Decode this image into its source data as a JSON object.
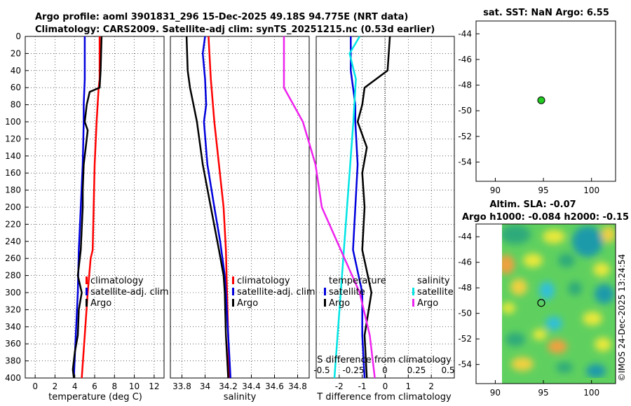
{
  "header": {
    "line1": "Argo profile: aoml 3901831_296 15-Dec-2025 49.18S 94.775E (NRT data)",
    "line2": "Climatology: CARS2009. Satellite-adj clim: synTS_20251215.nc (0.53d earlier)"
  },
  "copyright": "©IMOS 24-Dec-2025 13:24:54",
  "colors": {
    "red": "#ff0000",
    "blue": "#0000dd",
    "black": "#000000",
    "cyan": "#00e5e5",
    "magenta": "#ee22ee",
    "marker": "#22cc22"
  },
  "chart_data": [
    {
      "id": "temperature",
      "type": "line",
      "xlabel": "temperature (deg C)",
      "ylim": [
        0,
        400
      ],
      "xlim": [
        -1,
        13
      ],
      "xticks": [
        0,
        2,
        4,
        6,
        8,
        10,
        12
      ],
      "yticks": [
        0,
        20,
        40,
        60,
        80,
        100,
        120,
        140,
        160,
        180,
        200,
        220,
        240,
        260,
        280,
        300,
        320,
        340,
        360,
        380,
        400
      ],
      "legend": [
        "climatology",
        "satellite-adj. clim",
        "Argo"
      ],
      "series": [
        {
          "name": "climatology",
          "color": "red",
          "depth": [
            0,
            50,
            60,
            100,
            150,
            200,
            250,
            260,
            300,
            350,
            400
          ],
          "values": [
            6.5,
            6.5,
            6.4,
            6.2,
            6.0,
            5.9,
            5.8,
            5.6,
            5.3,
            5.0,
            4.7
          ]
        },
        {
          "name": "satellite-adj. clim",
          "color": "blue",
          "depth": [
            0,
            50,
            80,
            100,
            150,
            200,
            250,
            300,
            350,
            400
          ],
          "values": [
            5.0,
            5.0,
            4.9,
            4.9,
            4.8,
            4.6,
            4.4,
            4.3,
            4.1,
            3.9
          ]
        },
        {
          "name": "Argo",
          "color": "black",
          "depth": [
            0,
            40,
            60,
            65,
            80,
            100,
            110,
            130,
            150,
            180,
            200,
            250,
            280,
            300,
            320,
            350,
            370,
            390,
            400
          ],
          "values": [
            6.7,
            6.6,
            6.5,
            5.5,
            5.2,
            5.0,
            5.3,
            5.1,
            4.9,
            4.8,
            4.8,
            4.6,
            4.3,
            4.7,
            4.4,
            4.3,
            4.0,
            3.8,
            3.9
          ]
        }
      ]
    },
    {
      "id": "salinity",
      "type": "line",
      "xlabel": "salinity",
      "ylim": [
        0,
        400
      ],
      "xlim": [
        33.7,
        34.9
      ],
      "xticks": [
        33.8,
        34,
        34.2,
        34.4,
        34.6,
        34.8
      ],
      "legend": [
        "climatology",
        "satellite-adj. clim",
        "Argo"
      ],
      "series": [
        {
          "name": "climatology",
          "color": "red",
          "depth": [
            0,
            50,
            100,
            150,
            200,
            250,
            300,
            350,
            400
          ],
          "values": [
            34.03,
            34.05,
            34.08,
            34.12,
            34.16,
            34.18,
            34.19,
            34.2,
            34.21
          ]
        },
        {
          "name": "satellite-adj. clim",
          "color": "blue",
          "depth": [
            0,
            20,
            50,
            80,
            100,
            150,
            200,
            240,
            280,
            300,
            350,
            400
          ],
          "values": [
            34.0,
            33.98,
            34.0,
            34.01,
            33.99,
            34.02,
            34.08,
            34.13,
            34.17,
            34.18,
            34.2,
            34.22
          ]
        },
        {
          "name": "Argo",
          "color": "black",
          "depth": [
            0,
            40,
            60,
            80,
            100,
            150,
            200,
            250,
            280,
            300,
            350,
            400
          ],
          "values": [
            33.84,
            33.85,
            33.87,
            33.9,
            33.93,
            33.98,
            34.05,
            34.12,
            34.16,
            34.17,
            34.18,
            34.2
          ]
        }
      ]
    },
    {
      "id": "difference",
      "type": "line",
      "xlabel": "T difference from climatology",
      "xlabel2": "S difference from climatology",
      "ylim": [
        0,
        400
      ],
      "xlim": [
        -3,
        3
      ],
      "xticks": [
        -2,
        -1,
        0,
        1,
        2
      ],
      "xticks2": [
        "-0.5",
        "-0.25",
        "0",
        "0.25",
        "0.5"
      ],
      "legend_t_title": "temperature",
      "legend_s_title": "salinity",
      "legend_t": [
        "satellite",
        "Argo"
      ],
      "legend_s": [
        "satellite",
        "Argo"
      ],
      "series": [
        {
          "name": "T satellite",
          "color": "blue",
          "depth": [
            0,
            40,
            80,
            100,
            150,
            200,
            250,
            300,
            350,
            400
          ],
          "values": [
            -1.5,
            -1.5,
            -1.3,
            -1.3,
            -1.2,
            -1.3,
            -1.4,
            -1.0,
            -1.0,
            -0.9
          ]
        },
        {
          "name": "T Argo",
          "color": "black",
          "depth": [
            0,
            40,
            60,
            80,
            100,
            130,
            160,
            200,
            250,
            300,
            350,
            400
          ],
          "values": [
            0.2,
            0.1,
            -0.9,
            -1.0,
            -1.2,
            -0.8,
            -1.0,
            -0.9,
            -1.0,
            -0.6,
            -0.9,
            -0.8
          ]
        },
        {
          "name": "S satellite",
          "color": "cyan",
          "depth": [
            0,
            20,
            50,
            100,
            200,
            300,
            400
          ],
          "values": [
            -0.2,
            -0.28,
            -0.23,
            -0.25,
            -0.3,
            -0.35,
            -0.4
          ]
        },
        {
          "name": "S Argo",
          "color": "magenta",
          "depth": [
            0,
            40,
            60,
            100,
            150,
            200,
            250,
            300,
            350,
            400
          ],
          "values": [
            -0.8,
            -0.8,
            -0.8,
            -0.65,
            -0.55,
            -0.5,
            -0.35,
            -0.2,
            -0.12,
            -0.08
          ]
        }
      ]
    }
  ],
  "sst_map": {
    "title": "sat. SST: NaN Argo: 6.55",
    "xticks": [
      "90",
      "95",
      "100"
    ],
    "yticks": [
      "-44",
      "-46",
      "-48",
      "-50",
      "-52",
      "-54"
    ],
    "xlim": [
      88,
      102.5
    ],
    "ylim": [
      -55.5,
      -43
    ],
    "argo_lon": 94.775,
    "argo_lat": -49.18
  },
  "sla_map": {
    "title1": "Altim. SLA: -0.07",
    "title2": "Argo h1000: -0.084 h2000: -0.15",
    "xticks": [
      "90",
      "95",
      "100"
    ],
    "yticks": [
      "-44",
      "-46",
      "-48",
      "-50",
      "-52",
      "-54"
    ],
    "xlim": [
      88,
      102.5
    ],
    "ylim": [
      -55.5,
      -43
    ],
    "argo_lon": 94.775,
    "argo_lat": -49.18
  }
}
